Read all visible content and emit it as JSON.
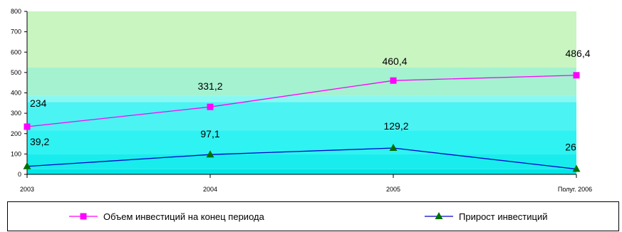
{
  "chart_data": {
    "type": "line",
    "title": "",
    "xlabel": "",
    "ylabel": "",
    "categories": [
      "2003",
      "2004",
      "2005",
      "Полуг. 2006"
    ],
    "ylim": [
      0,
      800
    ],
    "yticks": [
      0,
      100,
      200,
      300,
      400,
      500,
      600,
      700,
      800
    ],
    "background_bands": [
      {
        "from": 0,
        "to": 25,
        "color": "#00e6e6"
      },
      {
        "from": 25,
        "to": 100,
        "color": "#19ecec"
      },
      {
        "from": 100,
        "to": 215,
        "color": "#2ff2f2"
      },
      {
        "from": 215,
        "to": 355,
        "color": "#4bf3f3"
      },
      {
        "from": 355,
        "to": 385,
        "color": "#88f8f2"
      },
      {
        "from": 385,
        "to": 525,
        "color": "#a4f2d0"
      },
      {
        "from": 525,
        "to": 800,
        "color": "#c8f5c0"
      }
    ],
    "legend_position": "bottom",
    "series": [
      {
        "name": "Объем инвестиций на конец периода",
        "values": [
          234,
          331.2,
          460.4,
          486.4
        ],
        "labels": [
          "234",
          "331,2",
          "460,4",
          "486,4"
        ],
        "color": "#ff00ff",
        "marker": "square",
        "marker_color": "#ff00ff"
      },
      {
        "name": "Прирост инвестиций",
        "values": [
          39.2,
          97.1,
          129.2,
          26
        ],
        "labels": [
          "39,2",
          "97,1",
          "129,2",
          "26"
        ],
        "color": "#0000cc",
        "marker": "triangle",
        "marker_color": "#007000"
      }
    ]
  }
}
